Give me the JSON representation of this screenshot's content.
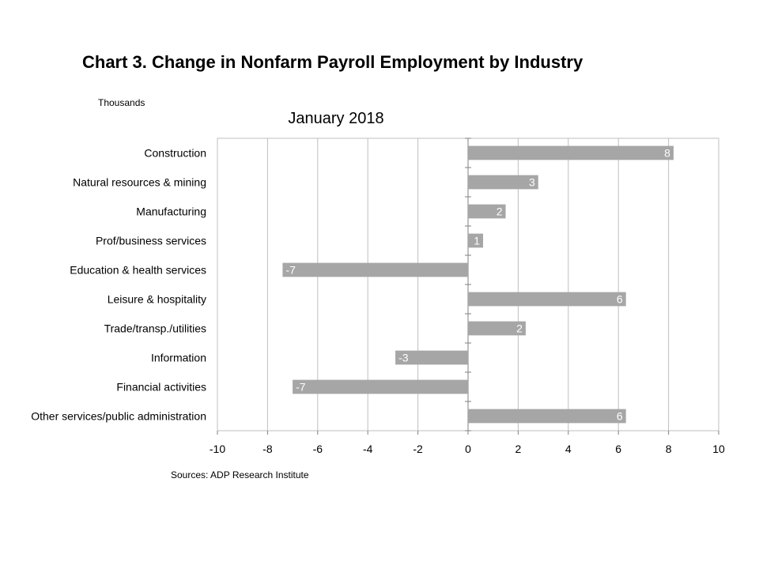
{
  "chart_data": {
    "type": "bar",
    "orientation": "horizontal",
    "title": "Chart 3. Change in Nonfarm Payroll Employment by Industry",
    "subtitle": "January 2018",
    "unit_label": "Thousands",
    "source": "Sources: ADP Research Institute",
    "categories": [
      "Construction",
      "Natural resources & mining",
      "Manufacturing",
      "Prof/business services",
      "Education & health services",
      "Leisure & hospitality",
      "Trade/transp./utilities",
      "Information",
      "Financial activities",
      "Other services/public administration"
    ],
    "values": [
      8.2,
      2.8,
      1.5,
      0.6,
      -7.4,
      6.3,
      2.3,
      -2.9,
      -7.0,
      6.3
    ],
    "data_labels": [
      "8",
      "3",
      "2",
      "1",
      "-7",
      "6",
      "2",
      "-3",
      "-7",
      "6"
    ],
    "xlim": [
      -10,
      10
    ],
    "x_ticks": [
      -10,
      -8,
      -6,
      -4,
      -2,
      0,
      2,
      4,
      6,
      8,
      10
    ],
    "x_tick_labels": [
      "-10",
      "-8",
      "-6",
      "-4",
      "-2",
      "0",
      "2",
      "4",
      "6",
      "8",
      "10"
    ],
    "grid": true,
    "colors": {
      "bar": "#a6a6a6",
      "grid": "#bfbfbf",
      "axis": "#808080",
      "bar_label": "#ffffff"
    }
  }
}
